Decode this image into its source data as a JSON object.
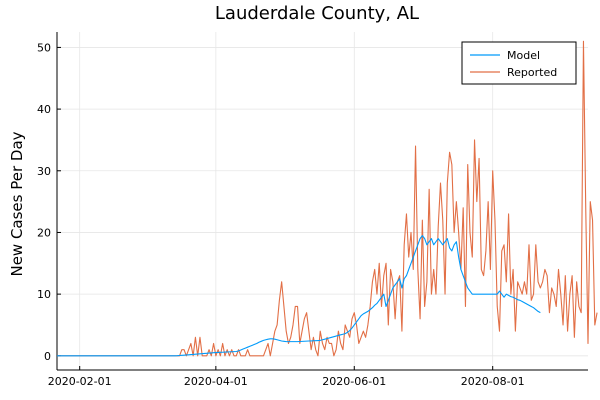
{
  "chart_data": {
    "type": "line",
    "title": "Lauderdale County, AL",
    "xlabel": "",
    "ylabel": "New Cases Per Day",
    "xlim": [
      "2020-01-22",
      "2020-09-12"
    ],
    "ylim": [
      -2.3,
      52.5
    ],
    "x_ticks": [
      "2020-02-01",
      "2020-04-01",
      "2020-06-01",
      "2020-08-01"
    ],
    "y_ticks": [
      0,
      10,
      20,
      30,
      40,
      50
    ],
    "grid": true,
    "legend_position": "top-right",
    "x_start": "2020-01-22",
    "x_step_days": 1,
    "series": [
      {
        "name": "Model",
        "color": "#009AFA",
        "values": [
          0,
          0,
          0,
          0,
          0,
          0,
          0,
          0,
          0,
          0,
          0,
          0,
          0,
          0,
          0,
          0,
          0,
          0,
          0,
          0,
          0,
          0,
          0,
          0,
          0,
          0,
          0,
          0,
          0,
          0,
          0,
          0,
          0,
          0,
          0,
          0,
          0,
          0,
          0,
          0,
          0,
          0,
          0,
          0,
          0,
          0,
          0,
          0,
          0,
          0,
          0,
          0,
          0,
          0.02,
          0.05,
          0.08,
          0.11,
          0.14,
          0.17,
          0.2,
          0.23,
          0.26,
          0.29,
          0.32,
          0.35,
          0.38,
          0.41,
          0.44,
          0.47,
          0.5,
          0.52,
          0.54,
          0.56,
          0.58,
          0.6,
          0.62,
          0.64,
          0.66,
          0.68,
          0.7,
          0.8,
          0.95,
          1.1,
          1.25,
          1.4,
          1.55,
          1.7,
          1.85,
          2,
          2.2,
          2.35,
          2.5,
          2.6,
          2.7,
          2.75,
          2.75,
          2.7,
          2.6,
          2.5,
          2.4,
          2.35,
          2.3,
          2.3,
          2.3,
          2.3,
          2.3,
          2.3,
          2.32,
          2.34,
          2.36,
          2.38,
          2.4,
          2.42,
          2.44,
          2.46,
          2.48,
          2.5,
          2.6,
          2.7,
          2.8,
          2.9,
          3,
          3.1,
          3.2,
          3.3,
          3.4,
          3.5,
          3.6,
          3.8,
          4.1,
          4.5,
          5,
          5.5,
          6,
          6.5,
          6.8,
          7,
          7.2,
          7.5,
          7.8,
          8.2,
          8.5,
          9,
          9.5,
          10,
          8,
          9,
          10,
          11,
          11.5,
          12,
          12.5,
          11,
          12.5,
          13,
          14,
          15,
          16,
          17,
          18,
          19,
          19.5,
          19,
          18,
          18.5,
          19,
          18,
          18.5,
          19,
          18.5,
          18,
          18.5,
          19,
          17.5,
          17,
          18,
          18.5,
          16,
          14,
          13,
          12,
          11,
          10.5,
          10,
          10,
          10,
          10,
          10,
          10,
          10,
          10,
          10,
          10,
          10,
          10,
          10.5,
          10,
          9.5,
          10,
          9.8,
          9.6,
          9.5,
          9.3,
          9.1,
          9,
          8.8,
          8.6,
          8.4,
          8.2,
          8,
          7.8,
          7.5,
          7.2,
          7
        ]
      },
      {
        "name": "Reported",
        "color": "#E26F46",
        "values": [
          0,
          0,
          0,
          0,
          0,
          0,
          0,
          0,
          0,
          0,
          0,
          0,
          0,
          0,
          0,
          0,
          0,
          0,
          0,
          0,
          0,
          0,
          0,
          0,
          0,
          0,
          0,
          0,
          0,
          0,
          0,
          0,
          0,
          0,
          0,
          0,
          0,
          0,
          0,
          0,
          0,
          0,
          0,
          0,
          0,
          0,
          0,
          0,
          0,
          0,
          0,
          0,
          0,
          0,
          0,
          1,
          1,
          0,
          1,
          2,
          0,
          3,
          0,
          3,
          0,
          0,
          0,
          1,
          0,
          2,
          0,
          1,
          0,
          2,
          0,
          1,
          0,
          1,
          0,
          0,
          1,
          0,
          0,
          0,
          1,
          0,
          0,
          0,
          0,
          0,
          0,
          0,
          1,
          2,
          0,
          2,
          4,
          5,
          9,
          12,
          8,
          4,
          2,
          3,
          5,
          8,
          8,
          2,
          4,
          6,
          7,
          4,
          1,
          3,
          1,
          0,
          4,
          2,
          1,
          3,
          2,
          2,
          0,
          1,
          4,
          2,
          1,
          5,
          4,
          3,
          6,
          7,
          5,
          2,
          3,
          4,
          3,
          5,
          8,
          12,
          14,
          10,
          15,
          8,
          13,
          15,
          5,
          14,
          12,
          6,
          12,
          13,
          4,
          18,
          23,
          16,
          20,
          14,
          34,
          14,
          6,
          22,
          8,
          12,
          27,
          10,
          14,
          10,
          21,
          28,
          22,
          10,
          28,
          33,
          31,
          20,
          25,
          20,
          14,
          24,
          8,
          31,
          20,
          16,
          35,
          25,
          32,
          14,
          13,
          17,
          25,
          14,
          30,
          22,
          8,
          4,
          17,
          18,
          12,
          23,
          10,
          14,
          4,
          12,
          11,
          10,
          12,
          10,
          18,
          9,
          10,
          18,
          12,
          11,
          12,
          14,
          13,
          7,
          11,
          10,
          8,
          14,
          10,
          5,
          13,
          4,
          10,
          13,
          3,
          12,
          8,
          7,
          51,
          24,
          2,
          25,
          22,
          5,
          7
        ]
      }
    ]
  }
}
